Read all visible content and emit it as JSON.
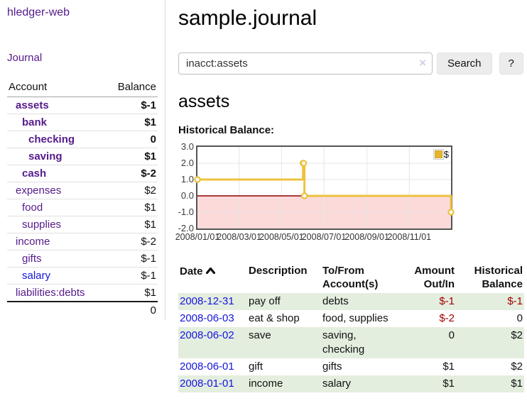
{
  "colors": {
    "link_purple": "#551a8b",
    "link_blue": "#1515dd",
    "negative_strong": "#a40000",
    "negative_soft": "#bf5f5f",
    "row_green": "#e3eedf",
    "series_gold": "#edc240",
    "negative_region_pink": "#fcdada",
    "zero_line_red": "#8b0000",
    "grid_gray": "#e6e6e6"
  },
  "sidebar": {
    "app_title": "hledger-web",
    "nav": {
      "journal": "Journal"
    },
    "accounts": {
      "headers": {
        "account": "Account",
        "balance": "Balance"
      },
      "rows": [
        {
          "name": "assets",
          "depth": 0,
          "bold": true,
          "balance": "$-1",
          "balance_class": "neg-strong",
          "link": "purple"
        },
        {
          "name": "bank",
          "depth": 1,
          "bold": true,
          "balance": "$1",
          "balance_class": "",
          "link": "purple"
        },
        {
          "name": "checking",
          "depth": 2,
          "bold": true,
          "balance": "0",
          "balance_class": "",
          "link": "purple"
        },
        {
          "name": "saving",
          "depth": 2,
          "bold": true,
          "balance": "$1",
          "balance_class": "",
          "link": "purple"
        },
        {
          "name": "cash",
          "depth": 1,
          "bold": true,
          "balance": "$-2",
          "balance_class": "neg-strong",
          "link": "purple"
        },
        {
          "name": "expenses",
          "depth": 0,
          "bold": false,
          "balance": "$2",
          "balance_class": "",
          "link": "purple"
        },
        {
          "name": "food",
          "depth": 1,
          "bold": false,
          "balance": "$1",
          "balance_class": "",
          "link": "purple"
        },
        {
          "name": "supplies",
          "depth": 1,
          "bold": false,
          "balance": "$1",
          "balance_class": "",
          "link": "purple"
        },
        {
          "name": "income",
          "depth": 0,
          "bold": false,
          "balance": "$-2",
          "balance_class": "neg-soft",
          "link": "purple"
        },
        {
          "name": "gifts",
          "depth": 1,
          "bold": false,
          "balance": "$-1",
          "balance_class": "neg-soft",
          "link": "purple"
        },
        {
          "name": "salary",
          "depth": 1,
          "bold": false,
          "balance": "$-1",
          "balance_class": "neg-soft",
          "link": "blue"
        },
        {
          "name": "liabilities:debts",
          "depth": 0,
          "bold": false,
          "balance": "$1",
          "balance_class": "",
          "link": "purple"
        }
      ],
      "total": "0"
    }
  },
  "header": {
    "title": "sample.journal"
  },
  "search": {
    "value": "inacct:assets",
    "clear_label": "×",
    "button": "Search",
    "help_button": "?"
  },
  "account_page": {
    "title": "assets",
    "chart_label": "Historical Balance:"
  },
  "chart_data": {
    "type": "line",
    "style": "step",
    "title": "Historical Balance",
    "legend": "$",
    "legend_position": "top-right",
    "grid": true,
    "xlim": [
      "2008/01/01",
      "2008/12/31"
    ],
    "ylim": [
      -2.0,
      3.0
    ],
    "yticks": [
      "3.0",
      "2.0",
      "1.0",
      "0.0",
      "-1.0",
      "-2.0"
    ],
    "xticks": [
      "2008/01/01",
      "2008/03/01",
      "2008/05/01",
      "2008/07/01",
      "2008/09/01",
      "2008/11/01"
    ],
    "negative_region_shaded": true,
    "series": [
      {
        "name": "$",
        "points": [
          [
            "2008-01-01",
            1
          ],
          [
            "2008-06-01",
            2
          ],
          [
            "2008-06-02",
            2
          ],
          [
            "2008-06-03",
            0
          ],
          [
            "2008-12-31",
            -1
          ]
        ]
      }
    ]
  },
  "transactions": {
    "headers": {
      "date": "Date",
      "description": "Description",
      "account": "To/From Account(s)",
      "amount": "Amount Out/In",
      "balance": "Historical Balance"
    },
    "rows": [
      {
        "date": "2008-12-31",
        "description": "pay off",
        "accounts": "debts",
        "amount": "$-1",
        "amount_class": "neg",
        "balance": "$-1",
        "balance_class": "neg"
      },
      {
        "date": "2008-06-03",
        "description": "eat & shop",
        "accounts": "food, supplies",
        "amount": "$-2",
        "amount_class": "neg",
        "balance": "0",
        "balance_class": ""
      },
      {
        "date": "2008-06-02",
        "description": "save",
        "accounts": "saving, checking",
        "amount": "0",
        "amount_class": "",
        "balance": "$2",
        "balance_class": ""
      },
      {
        "date": "2008-06-01",
        "description": "gift",
        "accounts": "gifts",
        "amount": "$1",
        "amount_class": "",
        "balance": "$2",
        "balance_class": ""
      },
      {
        "date": "2008-01-01",
        "description": "income",
        "accounts": "salary",
        "amount": "$1",
        "amount_class": "",
        "balance": "$1",
        "balance_class": ""
      }
    ]
  }
}
